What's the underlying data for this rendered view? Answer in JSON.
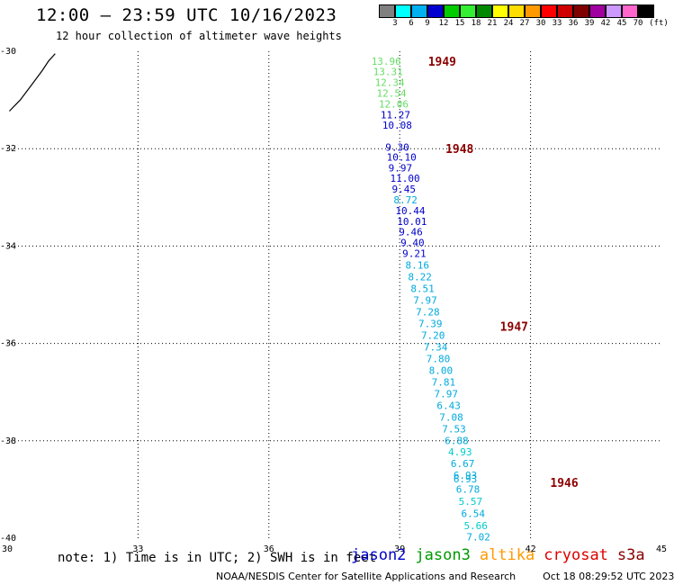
{
  "title": "12:00 – 23:59 UTC 10/16/2023",
  "subtitle": "12 hour collection of altimeter wave heights",
  "legend": {
    "unit": "(ft)",
    "bins": [
      {
        "label": "3",
        "color": "#808080"
      },
      {
        "label": "6",
        "color": "#00ffff"
      },
      {
        "label": "9",
        "color": "#00b0f0"
      },
      {
        "label": "12",
        "color": "#0000d0"
      },
      {
        "label": "15",
        "color": "#00cc00"
      },
      {
        "label": "18",
        "color": "#33ee33"
      },
      {
        "label": "21",
        "color": "#008800"
      },
      {
        "label": "24",
        "color": "#ffff00"
      },
      {
        "label": "27",
        "color": "#ffdd00"
      },
      {
        "label": "30",
        "color": "#ff9900"
      },
      {
        "label": "33",
        "color": "#ff0000"
      },
      {
        "label": "36",
        "color": "#d00000"
      },
      {
        "label": "39",
        "color": "#800000"
      },
      {
        "label": "42",
        "color": "#a000a0"
      },
      {
        "label": "45",
        "color": "#cc99ff"
      },
      {
        "label": "70",
        "color": "#ff66cc"
      },
      {
        "label": "",
        "color": "#000000"
      }
    ]
  },
  "map": {
    "lon_ticks": [
      "30",
      "33",
      "36",
      "39",
      "42",
      "45"
    ],
    "lat_ticks": [
      "-30",
      "-32",
      "-34",
      "-36",
      "-38",
      "-40"
    ],
    "grid_color": "#000000"
  },
  "time_labels": [
    {
      "text": "1949",
      "lon": 39.65,
      "lat": -30.2
    },
    {
      "text": "1948",
      "lon": 40.05,
      "lat": -32.0
    },
    {
      "text": "1947",
      "lon": 41.3,
      "lat": -35.65
    },
    {
      "text": "1946",
      "lon": 42.45,
      "lat": -38.85
    }
  ],
  "time_label_color": "#8b0000",
  "observations": [
    {
      "v": "13.96",
      "lon": 38.35,
      "lat": -30.2,
      "color": "#66dd66"
    },
    {
      "v": "13.31",
      "lon": 38.39,
      "lat": -30.42,
      "color": "#66dd66"
    },
    {
      "v": "12.34",
      "lon": 38.43,
      "lat": -30.64,
      "color": "#66dd66"
    },
    {
      "v": "12.54",
      "lon": 38.47,
      "lat": -30.86,
      "color": "#66dd66"
    },
    {
      "v": "12.06",
      "lon": 38.52,
      "lat": -31.08,
      "color": "#66dd66"
    },
    {
      "v": "11.27",
      "lon": 38.56,
      "lat": -31.3,
      "color": "#0000cc"
    },
    {
      "v": "10.08",
      "lon": 38.6,
      "lat": -31.52,
      "color": "#0000cc"
    },
    {
      "v": "9.30",
      "lon": 38.67,
      "lat": -31.97,
      "color": "#0000cc"
    },
    {
      "v": "10.10",
      "lon": 38.7,
      "lat": -32.17,
      "color": "#0000cc"
    },
    {
      "v": "9.97",
      "lon": 38.74,
      "lat": -32.39,
      "color": "#0000cc"
    },
    {
      "v": "11.00",
      "lon": 38.78,
      "lat": -32.61,
      "color": "#0000cc"
    },
    {
      "v": "9.45",
      "lon": 38.82,
      "lat": -32.83,
      "color": "#0000cc"
    },
    {
      "v": "8.72",
      "lon": 38.86,
      "lat": -33.05,
      "color": "#00aadd"
    },
    {
      "v": "10.44",
      "lon": 38.9,
      "lat": -33.27,
      "color": "#0000cc"
    },
    {
      "v": "10.01",
      "lon": 38.94,
      "lat": -33.49,
      "color": "#0000cc"
    },
    {
      "v": "9.46",
      "lon": 38.98,
      "lat": -33.71,
      "color": "#0000cc"
    },
    {
      "v": "9.40",
      "lon": 39.02,
      "lat": -33.93,
      "color": "#0000cc"
    },
    {
      "v": "9.21",
      "lon": 39.06,
      "lat": -34.15,
      "color": "#0000cc"
    },
    {
      "v": "8.16",
      "lon": 39.13,
      "lat": -34.39,
      "color": "#00aadd"
    },
    {
      "v": "8.22",
      "lon": 39.19,
      "lat": -34.63,
      "color": "#00aadd"
    },
    {
      "v": "8.51",
      "lon": 39.25,
      "lat": -34.87,
      "color": "#00aadd"
    },
    {
      "v": "7.97",
      "lon": 39.31,
      "lat": -35.11,
      "color": "#00aadd"
    },
    {
      "v": "7.28",
      "lon": 39.37,
      "lat": -35.35,
      "color": "#00aadd"
    },
    {
      "v": "7.39",
      "lon": 39.43,
      "lat": -35.59,
      "color": "#00aadd"
    },
    {
      "v": "7.20",
      "lon": 39.49,
      "lat": -35.83,
      "color": "#00aadd"
    },
    {
      "v": "7.34",
      "lon": 39.55,
      "lat": -36.07,
      "color": "#00aadd"
    },
    {
      "v": "7.80",
      "lon": 39.61,
      "lat": -36.31,
      "color": "#00aadd"
    },
    {
      "v": "8.00",
      "lon": 39.67,
      "lat": -36.55,
      "color": "#00aadd"
    },
    {
      "v": "7.81",
      "lon": 39.73,
      "lat": -36.79,
      "color": "#00aadd"
    },
    {
      "v": "7.97",
      "lon": 39.79,
      "lat": -37.03,
      "color": "#00aadd"
    },
    {
      "v": "6.43",
      "lon": 39.85,
      "lat": -37.27,
      "color": "#00aadd"
    },
    {
      "v": "7.08",
      "lon": 39.91,
      "lat": -37.51,
      "color": "#00aadd"
    },
    {
      "v": "7.53",
      "lon": 39.97,
      "lat": -37.75,
      "color": "#00aadd"
    },
    {
      "v": "6.88",
      "lon": 40.03,
      "lat": -37.99,
      "color": "#00aadd"
    },
    {
      "v": "4.93",
      "lon": 40.11,
      "lat": -38.23,
      "color": "#00cccc"
    },
    {
      "v": "6.67",
      "lon": 40.17,
      "lat": -38.47,
      "color": "#00aadd"
    },
    {
      "v": "6.93",
      "lon": 40.23,
      "lat": -38.71,
      "color": "#00aadd"
    },
    {
      "v": "6.93",
      "lon": 40.23,
      "lat": -38.78,
      "color": "#00aadd"
    },
    {
      "v": "6.78",
      "lon": 40.29,
      "lat": -38.99,
      "color": "#00aadd"
    },
    {
      "v": "5.57",
      "lon": 40.35,
      "lat": -39.24,
      "color": "#00cccc"
    },
    {
      "v": "6.54",
      "lon": 40.41,
      "lat": -39.49,
      "color": "#00aadd"
    },
    {
      "v": "5.66",
      "lon": 40.47,
      "lat": -39.74,
      "color": "#00cccc"
    },
    {
      "v": "7.02",
      "lon": 40.53,
      "lat": -39.97,
      "color": "#00aadd"
    }
  ],
  "coastline": [
    {
      "lon": 30.05,
      "lat": -31.23
    },
    {
      "lon": 30.3,
      "lat": -31.0
    },
    {
      "lon": 30.55,
      "lat": -30.7
    },
    {
      "lon": 30.8,
      "lat": -30.4
    },
    {
      "lon": 30.95,
      "lat": -30.2
    },
    {
      "lon": 31.05,
      "lat": -30.1
    },
    {
      "lon": 31.1,
      "lat": -30.05
    }
  ],
  "note": "note: 1) Time is in UTC; 2) SWH is in feet",
  "satellites": [
    {
      "name": "jason2",
      "color": "#0000cc"
    },
    {
      "name": "jason3",
      "color": "#009900"
    },
    {
      "name": "altika",
      "color": "#ff9900"
    },
    {
      "name": "cryosat",
      "color": "#dd0000"
    },
    {
      "name": "s3a",
      "color": "#880000"
    }
  ],
  "footer": {
    "credit": "NOAA/NESDIS Center for Satellite Applications and Research",
    "timestamp": "Oct 18 08:29:52 UTC 2023"
  }
}
